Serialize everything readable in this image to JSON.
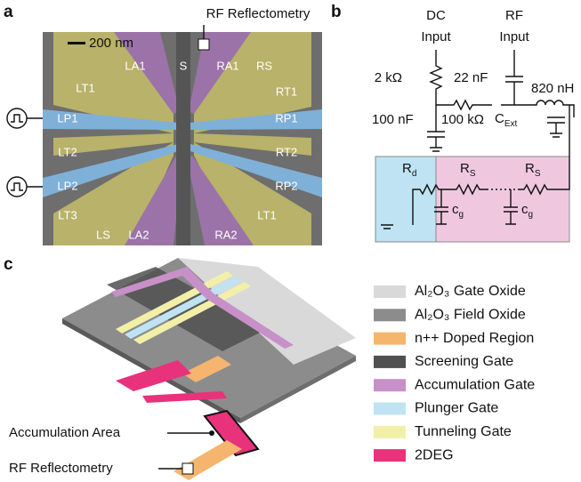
{
  "panels": [
    "a",
    "b",
    "c"
  ],
  "a": {
    "scale_bar": "200 nm",
    "rf": "RF Reflectometry",
    "gates": [
      "LA1",
      "S",
      "RA1",
      "RS",
      "LT1",
      "RT1",
      "LP1",
      "RP1",
      "LT2",
      "RT2",
      "LP2",
      "RP2",
      "LT3",
      "LT1",
      "LS",
      "LA2",
      "RA2"
    ]
  },
  "b": {
    "dc": [
      "DC",
      "Input"
    ],
    "rf": [
      "RF",
      "Input"
    ],
    "components": [
      "2 kΩ",
      "22 nF",
      "820 nH",
      "100 nF",
      "100 kΩ"
    ],
    "c_ext": {
      "main": "C",
      "sub": "Ext"
    },
    "r_d": {
      "main": "R",
      "sub": "d"
    },
    "r_s": {
      "main": "R",
      "sub": "S"
    },
    "c_g": {
      "main": "c",
      "sub": "g"
    }
  },
  "c": {
    "annotations": [
      "Accumulation Area",
      "RF Reflectometry"
    ],
    "legend": [
      {
        "label": "Al₂O₃ Gate Oxide",
        "color": "#d9d9d9"
      },
      {
        "label": "Al₂O₃ Field Oxide",
        "color": "#8c8c8c"
      },
      {
        "label": "n++ Doped Region",
        "color": "#f5b56e"
      },
      {
        "label": "Screening Gate",
        "color": "#505050"
      },
      {
        "label": "Accumulation Gate",
        "color": "#c890c8"
      },
      {
        "label": "Plunger Gate",
        "color": "#bfe3f2"
      },
      {
        "label": "Tunneling Gate",
        "color": "#f2f0a8"
      },
      {
        "label": "2DEG",
        "color": "#e8327c"
      }
    ]
  }
}
